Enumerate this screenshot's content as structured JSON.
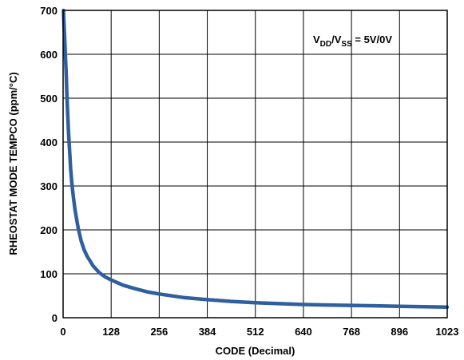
{
  "chart_data": {
    "type": "line",
    "title": "",
    "xlabel": "CODE (Decimal)",
    "ylabel": "RHEOSTAT MODE TEMPCO (ppm/°C)",
    "xlim": [
      0,
      1023
    ],
    "ylim": [
      0,
      700
    ],
    "x_ticks": [
      "0",
      "128",
      "256",
      "384",
      "512",
      "640",
      "768",
      "896",
      "1023"
    ],
    "y_ticks": [
      "0",
      "100",
      "200",
      "300",
      "400",
      "500",
      "600",
      "700"
    ],
    "grid": true,
    "line_color": "#2f5f9e",
    "annotation": {
      "v1": "V",
      "v1_sub": "DD",
      "slash": "/V",
      "v2_sub": "SS",
      "value": " = 5V/0V"
    },
    "series": [
      {
        "x": [
          1,
          2,
          4,
          6,
          8,
          10,
          12,
          14,
          16,
          18,
          20,
          24,
          28,
          32,
          40,
          48,
          56,
          64,
          80,
          96,
          112,
          128,
          160,
          192,
          224,
          256,
          320,
          384,
          448,
          512,
          576,
          640,
          704,
          768,
          832,
          896,
          960,
          1023
        ],
        "y": [
          700,
          680,
          640,
          600,
          560,
          510,
          470,
          430,
          400,
          370,
          340,
          300,
          270,
          245,
          205,
          175,
          155,
          140,
          118,
          103,
          93,
          86,
          74,
          66,
          59,
          54,
          46,
          41,
          37,
          34,
          32,
          30,
          29,
          28,
          27,
          26,
          25,
          24
        ]
      }
    ]
  }
}
